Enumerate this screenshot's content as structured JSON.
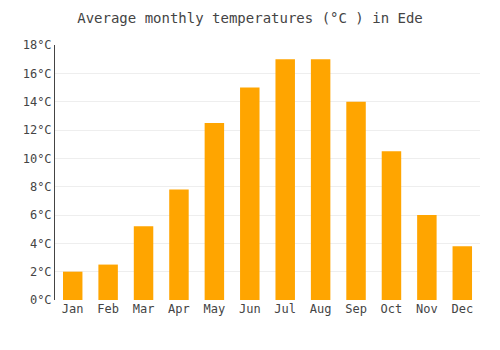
{
  "chart_data": {
    "type": "bar",
    "title": "Average monthly temperatures (°C ) in Ede",
    "categories": [
      "Jan",
      "Feb",
      "Mar",
      "Apr",
      "May",
      "Jun",
      "Jul",
      "Aug",
      "Sep",
      "Oct",
      "Nov",
      "Dec"
    ],
    "values": [
      2.0,
      2.5,
      5.2,
      7.8,
      12.5,
      15.0,
      17.0,
      17.0,
      14.0,
      10.5,
      6.0,
      3.8
    ],
    "color": "#FFA500",
    "ylim": [
      0,
      18
    ],
    "yticks": [
      {
        "value": 0,
        "label": "0°C"
      },
      {
        "value": 2,
        "label": "2°C"
      },
      {
        "value": 4,
        "label": "4°C"
      },
      {
        "value": 6,
        "label": "6°C"
      },
      {
        "value": 8,
        "label": "8°C"
      },
      {
        "value": 10,
        "label": "10°C"
      },
      {
        "value": 12,
        "label": "12°C"
      },
      {
        "value": 14,
        "label": "14°C"
      },
      {
        "value": 16,
        "label": "16°C"
      },
      {
        "value": 18,
        "label": "18°C"
      }
    ],
    "grid": true
  }
}
